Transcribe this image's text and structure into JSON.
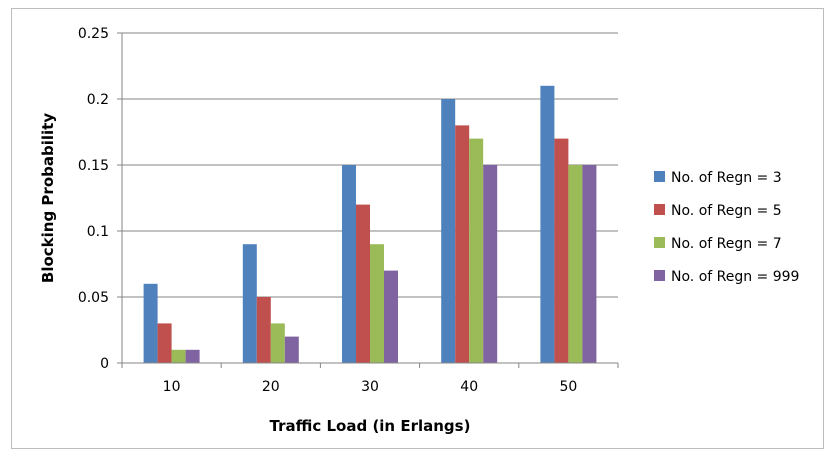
{
  "chart_data": {
    "type": "bar",
    "title": "",
    "xlabel": "Traffic Load (in Erlangs)",
    "ylabel": "Blocking Probability",
    "categories": [
      "10",
      "20",
      "30",
      "40",
      "50"
    ],
    "ylim": [
      0,
      0.25
    ],
    "yticks": [
      "0",
      "0.05",
      "0.1",
      "0.15",
      "0.2",
      "0.25"
    ],
    "grid": true,
    "legend_position": "right",
    "series": [
      {
        "name": "No. of Regn = 3",
        "color": "#4f81bd",
        "values": [
          0.06,
          0.09,
          0.15,
          0.2,
          0.21
        ]
      },
      {
        "name": "No. of Regn = 5",
        "color": "#c0504d",
        "values": [
          0.03,
          0.05,
          0.12,
          0.18,
          0.17
        ]
      },
      {
        "name": "No. of Regn = 7",
        "color": "#9bbb59",
        "values": [
          0.01,
          0.03,
          0.09,
          0.17,
          0.15
        ]
      },
      {
        "name": "No. of Regn = 999",
        "color": "#8064a2",
        "values": [
          0.01,
          0.02,
          0.07,
          0.15,
          0.15
        ]
      }
    ]
  }
}
